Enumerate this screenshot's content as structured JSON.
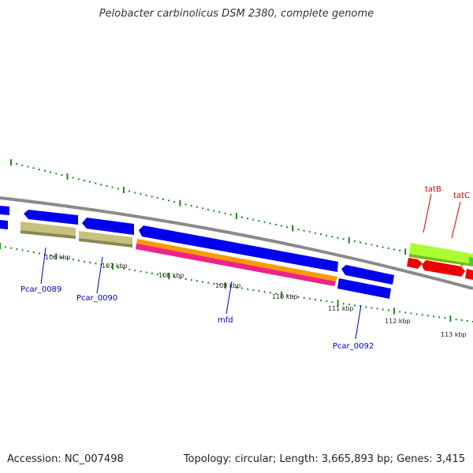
{
  "title": "Pelobacter carbinolicus DSM 2380, complete genome",
  "footer": {
    "accession": "Accession: NC_007498",
    "summary": "Topology: circular; Length: 3,665,893 bp; Genes: 3,415"
  },
  "colors": {
    "backbone": "#8a8a8a",
    "tick": "#1a8a1a",
    "gene_label_blue": "#0000bb",
    "gene_label_red": "#cc0000"
  },
  "scale_labels": [
    "106 kbp",
    "107 kbp",
    "108 kbp",
    "109 kbp",
    "110 kbp",
    "111 kbp",
    "112 kbp",
    "113 kbp"
  ],
  "gene_labels": [
    {
      "name": "Pcar_0089",
      "color": "blue"
    },
    {
      "name": "Pcar_0090",
      "color": "blue"
    },
    {
      "name": "mfd",
      "color": "blue"
    },
    {
      "name": "Pcar_0092",
      "color": "blue"
    },
    {
      "name": "tatB",
      "color": "red"
    },
    {
      "name": "tatC",
      "color": "red"
    }
  ]
}
